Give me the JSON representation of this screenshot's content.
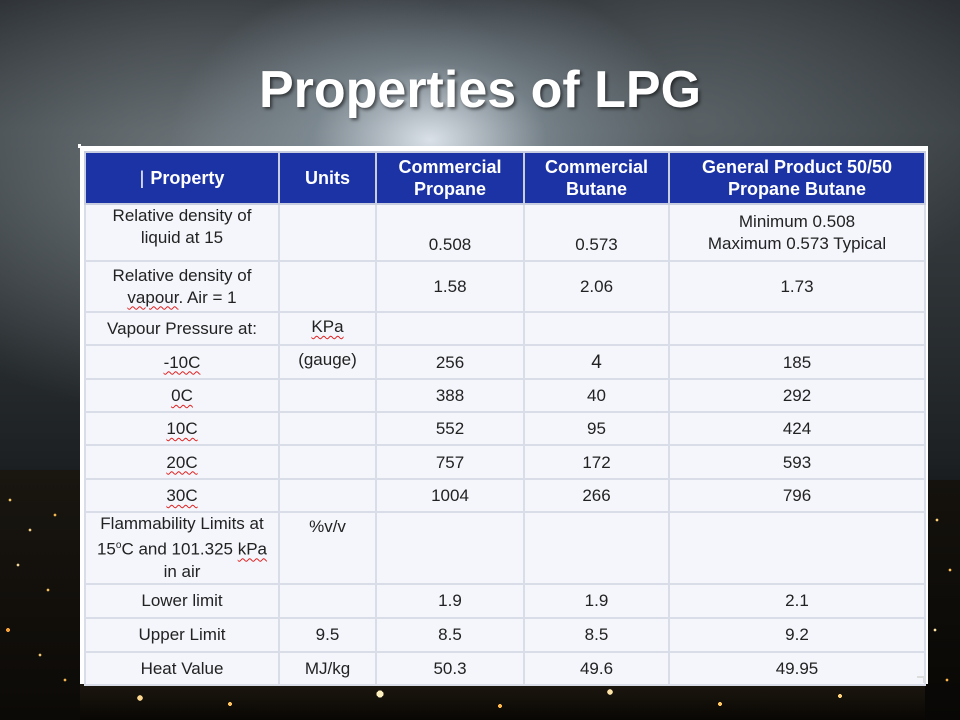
{
  "slide": {
    "title": "Properties of LPG"
  },
  "table": {
    "headers": {
      "property_bar": "|",
      "property": "Property",
      "units": "Units",
      "propane_line1": "Commercial",
      "propane_line2": "Propane",
      "butane_line1": "Commercial",
      "butane_line2": "Butane",
      "general_line1": "General Product 50/50",
      "general_line2": "Propane Butane"
    },
    "rows": {
      "rel_density_liquid": {
        "property_line1": "Relative density of",
        "property_line2": "liquid at 15",
        "units": "",
        "propane": "0.508",
        "butane": "0.573",
        "general_line1": "Minimum 0.508",
        "general_line2": "Maximum 0.573 Typical"
      },
      "rel_density_vapour": {
        "property_line1": "Relative density of",
        "property_line2_word": "vapour",
        "property_line2_rest": ". Air = 1",
        "units": "",
        "propane": "1.58",
        "butane": "2.06",
        "general": "1.73"
      },
      "vapour_pressure": {
        "property": "Vapour Pressure at:",
        "units": "KPa"
      },
      "m10c": {
        "property": "-10C",
        "units": "(gauge)",
        "propane": "256",
        "butane": "4",
        "general": "185"
      },
      "0c": {
        "property": "0C",
        "propane": "388",
        "butane": "40",
        "general": "292"
      },
      "10c": {
        "property": "10C",
        "propane": "552",
        "butane": "95",
        "general": "424"
      },
      "20c": {
        "property": "20C",
        "propane": "757",
        "butane": "172",
        "general": "593"
      },
      "30c": {
        "property": "30C",
        "propane": "1004",
        "butane": "266",
        "general": "796"
      },
      "flammability": {
        "property_line1": "Flammability Limits at",
        "property_line2_pre": "15",
        "property_line2_sup": "o",
        "property_line2_mid": "C and 101.325 ",
        "property_line2_word": "kPa",
        "property_line3": "in air",
        "units": "%v/v"
      },
      "lower_limit": {
        "property": "Lower limit",
        "propane": "1.9",
        "butane": "1.9",
        "general": "2.1"
      },
      "upper_limit": {
        "property": "Upper Limit",
        "units": "9.5",
        "propane": "8.5",
        "butane": "8.5",
        "general": "9.2"
      },
      "heat_value": {
        "property": "Heat Value",
        "units": "MJ/kg",
        "propane": "50.3",
        "butane": "49.6",
        "general": "49.95"
      }
    }
  },
  "colors": {
    "header_bg": "#1c33a6",
    "header_text": "#ffffff",
    "cell_bg": "#f4f6fb",
    "spellcheck_underline": "#e02020"
  }
}
